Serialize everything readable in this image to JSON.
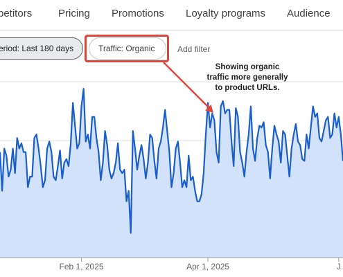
{
  "tabs": [
    {
      "label": "petitors"
    },
    {
      "label": "Pricing"
    },
    {
      "label": "Promotions"
    },
    {
      "label": "Loyalty programs"
    },
    {
      "label": "Audience"
    }
  ],
  "filters": {
    "period_label": "eriod: Last 180 days",
    "traffic_label": "Traffic: Organic",
    "add_filter_label": "Add filter"
  },
  "annotation": {
    "line1": "Showing organic",
    "line2": "traffic more generally",
    "line3": "to product URLs."
  },
  "colors": {
    "line": "#1a5fc9",
    "fill": "#d3e2fb",
    "highlight": "#e0473c",
    "grid": "#dadce0"
  },
  "chart_data": {
    "type": "area",
    "x_ticks": [
      {
        "label": "Feb 1, 2025",
        "index": 38
      },
      {
        "label": "Apr 1, 2025",
        "index": 97
      },
      {
        "label": "J",
        "index": 158
      }
    ],
    "values": [
      60,
      38,
      62,
      58,
      46,
      50,
      62,
      48,
      68,
      62,
      65,
      60,
      60,
      40,
      46,
      46,
      68,
      70,
      62,
      52,
      40,
      44,
      62,
      66,
      60,
      46,
      44,
      52,
      61,
      45,
      54,
      56,
      52,
      65,
      88,
      75,
      62,
      65,
      86,
      96,
      66,
      70,
      62,
      80,
      80,
      68,
      60,
      44,
      54,
      72,
      64,
      50,
      45,
      48,
      54,
      65,
      50,
      48,
      50,
      32,
      38,
      14,
      72,
      62,
      50,
      58,
      64,
      56,
      45,
      54,
      70,
      68,
      55,
      45,
      62,
      66,
      74,
      84,
      72,
      60,
      40,
      48,
      62,
      66,
      54,
      40,
      44,
      40,
      58,
      44,
      46,
      38,
      32,
      32,
      36,
      48,
      70,
      88,
      74,
      82,
      78,
      60,
      54,
      86,
      89,
      82,
      84,
      84,
      66,
      52,
      85,
      80,
      60,
      54,
      46,
      60,
      70,
      86,
      62,
      55,
      68,
      75,
      74,
      77,
      64,
      60,
      45,
      62,
      75,
      70,
      66,
      54,
      72,
      70,
      58,
      46,
      62,
      70,
      76,
      66,
      64,
      56,
      55,
      70,
      62,
      74,
      86,
      80,
      82,
      68,
      66,
      72,
      78,
      80,
      68,
      70,
      82,
      74,
      80,
      70,
      55
    ],
    "series": [
      {
        "values": []
      }
    ]
  }
}
